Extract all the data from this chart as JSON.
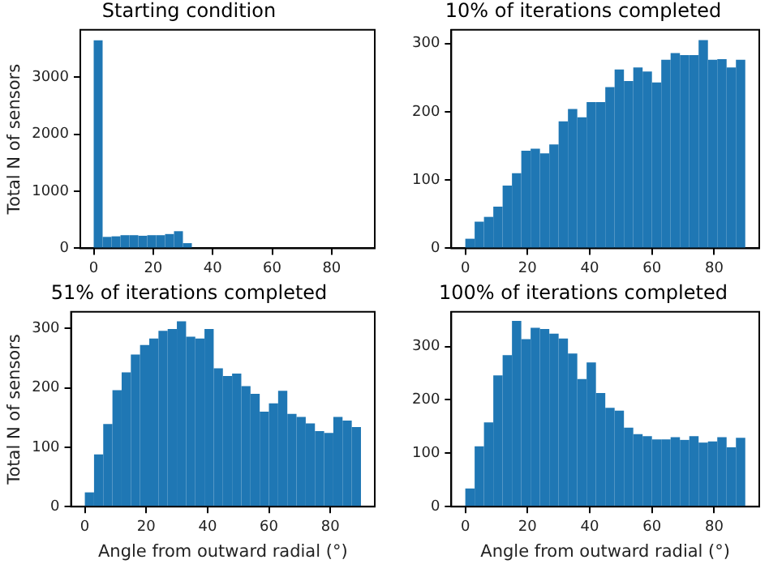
{
  "chart_data": [
    {
      "type": "histogram",
      "title": "Starting condition",
      "ylabel": "Total N of sensors",
      "color": "#1f77b4",
      "bins": [
        0,
        3,
        6,
        9,
        12,
        15,
        18,
        21,
        24,
        27,
        30,
        33
      ],
      "values": [
        3650,
        200,
        210,
        230,
        230,
        220,
        230,
        230,
        250,
        300,
        90
      ],
      "xlim": [
        -4.5,
        94.5
      ],
      "xticks": [
        0,
        20,
        40,
        60,
        80
      ],
      "ylim": [
        0,
        3833
      ],
      "yticks": [
        0,
        1000,
        2000,
        3000
      ],
      "grid": false,
      "legend": false
    },
    {
      "type": "histogram",
      "title": "10% of iterations completed",
      "color": "#1f77b4",
      "bins": [
        0,
        3,
        6,
        9,
        12,
        15,
        18,
        21,
        24,
        27,
        30,
        33,
        36,
        39,
        42,
        45,
        48,
        51,
        54,
        57,
        60,
        63,
        66,
        69,
        72,
        75,
        78,
        81,
        84,
        87,
        90
      ],
      "values": [
        14,
        39,
        46,
        61,
        92,
        110,
        143,
        146,
        139,
        152,
        186,
        204,
        192,
        214,
        214,
        236,
        262,
        245,
        265,
        259,
        243,
        276,
        286,
        283,
        283,
        305,
        276,
        277,
        265,
        276
      ],
      "xlim": [
        -4.5,
        94.5
      ],
      "xticks": [
        0,
        20,
        40,
        60,
        80
      ],
      "ylim": [
        0,
        320
      ],
      "yticks": [
        0,
        100,
        200,
        300
      ],
      "grid": false,
      "legend": false
    },
    {
      "type": "histogram",
      "title": "51% of iterations completed",
      "xlabel": "Angle from outward radial (°)",
      "ylabel": "Total N of sensors",
      "color": "#1f77b4",
      "bins": [
        0,
        3,
        6,
        9,
        12,
        15,
        18,
        21,
        24,
        27,
        30,
        33,
        36,
        39,
        42,
        45,
        48,
        51,
        54,
        57,
        60,
        63,
        66,
        69,
        72,
        75,
        78,
        81,
        84,
        87,
        90
      ],
      "values": [
        24,
        88,
        139,
        196,
        226,
        256,
        272,
        283,
        296,
        299,
        312,
        286,
        283,
        299,
        233,
        220,
        224,
        203,
        190,
        160,
        174,
        195,
        156,
        151,
        140,
        127,
        124,
        151,
        145,
        134
      ],
      "xlim": [
        -4.5,
        94.5
      ],
      "xticks": [
        0,
        20,
        40,
        60,
        80
      ],
      "ylim": [
        0,
        328
      ],
      "yticks": [
        0,
        100,
        200,
        300
      ],
      "grid": false,
      "legend": false
    },
    {
      "type": "histogram",
      "title": "100% of iterations completed",
      "xlabel": "Angle from outward radial (°)",
      "color": "#1f77b4",
      "bins": [
        0,
        3,
        6,
        9,
        12,
        15,
        18,
        21,
        24,
        27,
        30,
        33,
        36,
        39,
        42,
        45,
        48,
        51,
        54,
        57,
        60,
        63,
        66,
        69,
        72,
        75,
        78,
        81,
        84,
        87,
        90
      ],
      "values": [
        34,
        113,
        158,
        246,
        284,
        348,
        314,
        335,
        333,
        324,
        315,
        287,
        239,
        270,
        213,
        185,
        180,
        148,
        136,
        132,
        126,
        126,
        130,
        125,
        132,
        120,
        122,
        130,
        111,
        129
      ],
      "xlim": [
        -4.5,
        94.5
      ],
      "xticks": [
        0,
        20,
        40,
        60,
        80
      ],
      "ylim": [
        0,
        365
      ],
      "yticks": [
        0,
        100,
        200,
        300
      ],
      "grid": false,
      "legend": false
    }
  ]
}
